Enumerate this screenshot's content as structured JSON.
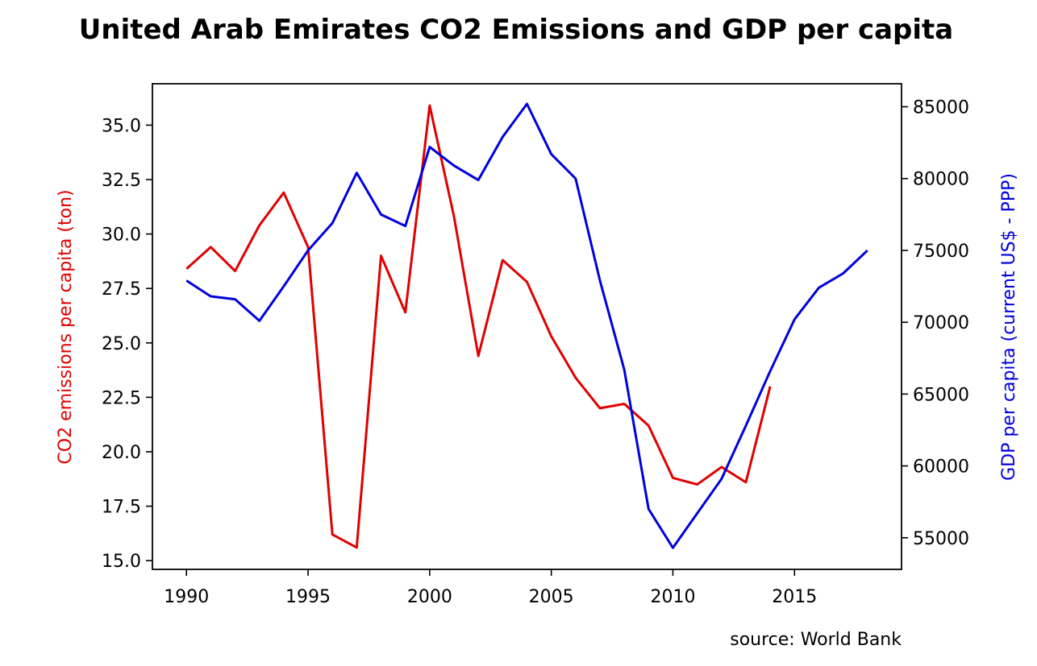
{
  "chart_data": {
    "type": "line",
    "title": "United Arab Emirates CO2 Emissions and GDP per capita",
    "source": "source: World Bank",
    "xlim": [
      1988.6,
      2019.4
    ],
    "x_ticks": [
      1990,
      1995,
      2000,
      2005,
      2010,
      2015
    ],
    "y_left": {
      "label": "CO2 emissions per capita (ton)",
      "color": "#e00000",
      "ylim": [
        14.6,
        36.9
      ],
      "ticks": [
        15.0,
        17.5,
        20.0,
        22.5,
        25.0,
        27.5,
        30.0,
        32.5,
        35.0
      ],
      "tick_labels": [
        "15.0",
        "17.5",
        "20.0",
        "22.5",
        "25.0",
        "27.5",
        "30.0",
        "32.5",
        "35.0"
      ]
    },
    "y_right": {
      "label": "GDP per capita (current US$ - PPP)",
      "color": "#0000dd",
      "ylim": [
        52800,
        86600
      ],
      "ticks": [
        55000,
        60000,
        65000,
        70000,
        75000,
        80000,
        85000
      ],
      "tick_labels": [
        "55000",
        "60000",
        "65000",
        "70000",
        "75000",
        "80000",
        "85000"
      ]
    },
    "series": [
      {
        "axis": "left",
        "color": "#e00000",
        "x": [
          1990,
          1991,
          1992,
          1993,
          1994,
          1995,
          1996,
          1997,
          1998,
          1999,
          2000,
          2001,
          2002,
          2003,
          2004,
          2005,
          2006,
          2007,
          2008,
          2009,
          2010,
          2011,
          2012,
          2013,
          2014
        ],
        "values": [
          28.4,
          29.4,
          28.3,
          30.4,
          31.9,
          29.4,
          16.2,
          15.6,
          29.0,
          26.4,
          35.9,
          30.8,
          24.4,
          28.8,
          27.8,
          25.3,
          23.4,
          22.0,
          22.2,
          21.2,
          18.8,
          18.5,
          19.3,
          18.6,
          23.0
        ]
      },
      {
        "axis": "right",
        "color": "#0000dd",
        "x": [
          1990,
          1991,
          1992,
          1993,
          1994,
          1995,
          1996,
          1997,
          1998,
          1999,
          2000,
          2001,
          2002,
          2003,
          2004,
          2005,
          2006,
          2007,
          2008,
          2009,
          2010,
          2011,
          2012,
          2013,
          2014,
          2015,
          2016,
          2017,
          2018
        ],
        "values": [
          72900,
          71800,
          71600,
          70100,
          72500,
          75000,
          76900,
          80400,
          77500,
          76700,
          82200,
          80900,
          79900,
          82900,
          85200,
          81700,
          80000,
          72900,
          66700,
          57000,
          54300,
          56700,
          59100,
          62800,
          66600,
          70200,
          72400,
          73400,
          75000
        ]
      }
    ]
  }
}
